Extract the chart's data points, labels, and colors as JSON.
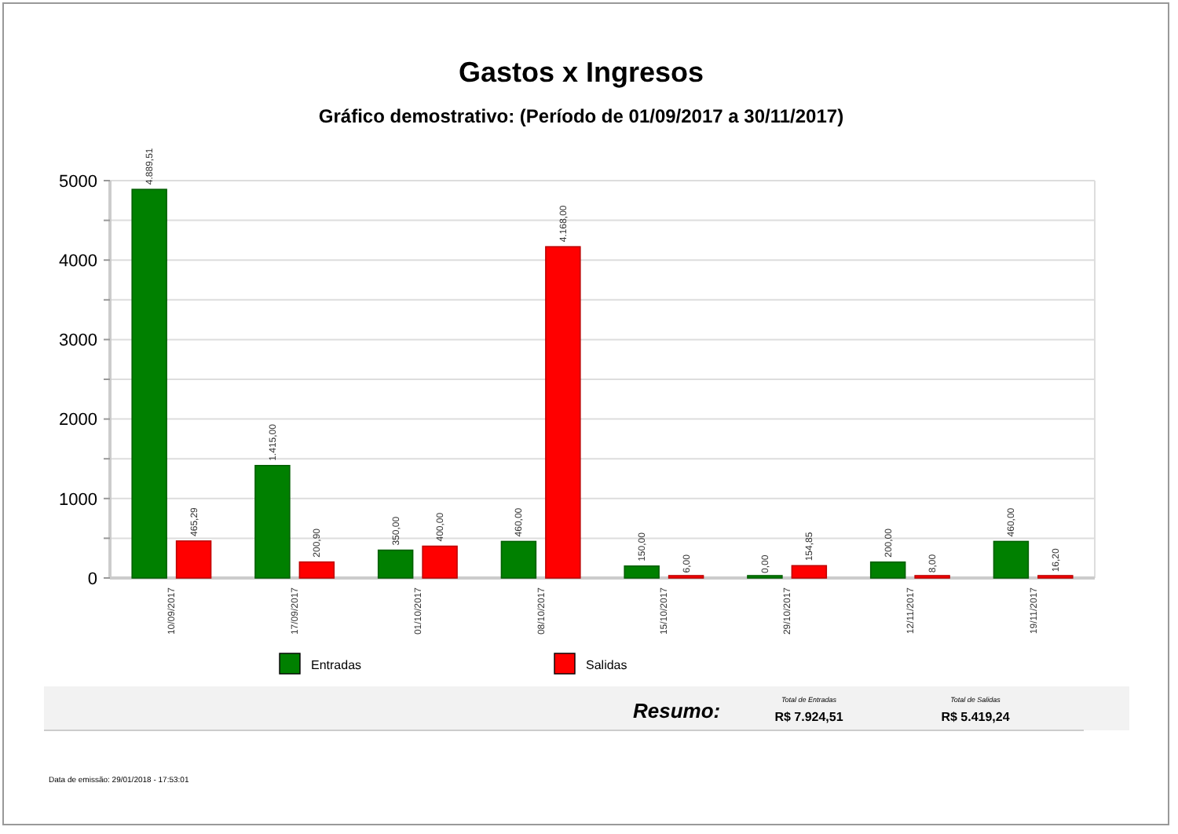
{
  "chart_data": {
    "type": "bar",
    "title": "Gastos x Ingresos",
    "subtitle": "Gráfico demostrativo: (Período de 01/09/2017 a 30/11/2017)",
    "categories": [
      "10/09/2017",
      "17/09/2017",
      "01/10/2017",
      "08/10/2017",
      "15/10/2017",
      "29/10/2017",
      "12/11/2017",
      "19/11/2017"
    ],
    "series": [
      {
        "name": "Entradas",
        "color": "#008000",
        "values": [
          4889.51,
          1415,
          350,
          460,
          150,
          0,
          200,
          460
        ],
        "value_labels": [
          "4.889,51",
          "1.415,00",
          "350,00",
          "460,00",
          "150,00",
          "0,00",
          "200,00",
          "460,00"
        ]
      },
      {
        "name": "Salidas",
        "color": "#ff0000",
        "values": [
          465.29,
          200.9,
          400,
          4168,
          6,
          154.85,
          8,
          16.2
        ],
        "value_labels": [
          "465,29",
          "200,90",
          "400,00",
          "4.168,00",
          "6,00",
          "154,85",
          "8,00",
          "16,20"
        ]
      }
    ],
    "ylim": [
      0,
      5000
    ],
    "yticks": [
      0,
      {
        "value": 500,
        "label": null
      },
      1000,
      {
        "value": 1500,
        "label": null
      },
      2000,
      {
        "value": 2500,
        "label": null
      },
      3000,
      {
        "value": 3500,
        "label": null
      },
      4000,
      {
        "value": 4500,
        "label": null
      },
      5000
    ],
    "grid": "y",
    "legend": "bottom",
    "annotations": [
      "Resumo:",
      "Total de Entradas",
      "R$ 7.924,51",
      "Total de Salidas",
      "R$ 5.419,24",
      "Data de emissão: 29/01/2018 - 17:53:01"
    ]
  }
}
